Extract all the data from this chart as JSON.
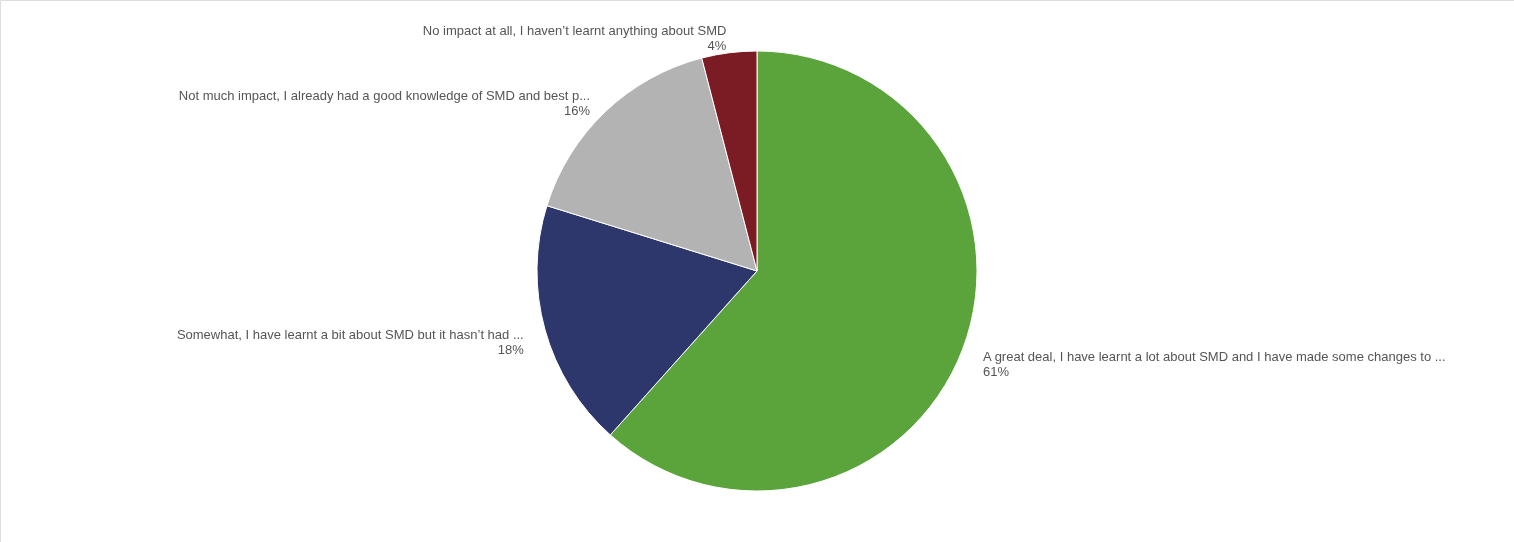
{
  "chart_data": {
    "type": "pie",
    "categories": [
      "A great deal, I have learnt a lot about SMD and I have made some changes to ...",
      "Somewhat, I have learnt a bit about SMD but it hasn’t had ...",
      "Not much impact, I already had a good knowledge of SMD and best p...",
      "No impact at all, I haven’t learnt anything about SMD"
    ],
    "values": [
      61,
      18,
      16,
      4
    ],
    "colors": [
      "#5ba33b",
      "#2e376b",
      "#b3b3b3",
      "#7b1c24"
    ],
    "value_labels": [
      "61%",
      "18%",
      "16%",
      "4%"
    ]
  }
}
